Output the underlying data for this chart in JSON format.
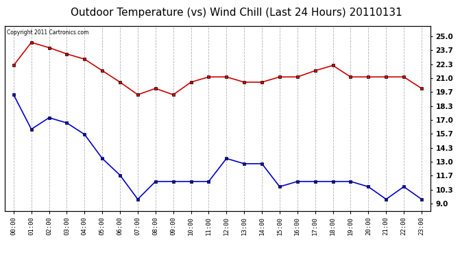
{
  "title": "Outdoor Temperature (vs) Wind Chill (Last 24 Hours) 20110131",
  "copyright_text": "Copyright 2011 Cartronics.com",
  "x_labels": [
    "00:00",
    "01:00",
    "02:00",
    "03:00",
    "04:00",
    "05:00",
    "06:00",
    "07:00",
    "08:00",
    "09:00",
    "10:00",
    "11:00",
    "12:00",
    "13:00",
    "14:00",
    "15:00",
    "16:00",
    "17:00",
    "18:00",
    "19:00",
    "20:00",
    "21:00",
    "22:00",
    "23:00"
  ],
  "temp_data": [
    22.2,
    24.4,
    23.9,
    23.3,
    22.8,
    21.7,
    20.6,
    19.4,
    20.0,
    19.4,
    20.6,
    21.1,
    21.1,
    20.6,
    20.6,
    21.1,
    21.1,
    21.7,
    22.2,
    21.1,
    21.1,
    21.1,
    21.1,
    20.0
  ],
  "wind_chill_data": [
    19.4,
    16.1,
    17.2,
    16.7,
    15.6,
    13.3,
    11.7,
    9.4,
    11.1,
    11.1,
    11.1,
    11.1,
    13.3,
    12.8,
    12.8,
    10.6,
    11.1,
    11.1,
    11.1,
    11.1,
    10.6,
    9.4,
    10.6,
    9.4
  ],
  "temp_color": "#cc0000",
  "wind_chill_color": "#0000cc",
  "ylim": [
    8.3,
    26.0
  ],
  "yticks_right": [
    9.0,
    10.3,
    11.7,
    13.0,
    14.3,
    15.7,
    17.0,
    18.3,
    19.7,
    21.0,
    22.3,
    23.7,
    25.0
  ],
  "bg_color": "#ffffff",
  "grid_color": "#aaaaaa",
  "title_fontsize": 11,
  "marker": "s",
  "marker_size": 3,
  "line_width": 1.2
}
